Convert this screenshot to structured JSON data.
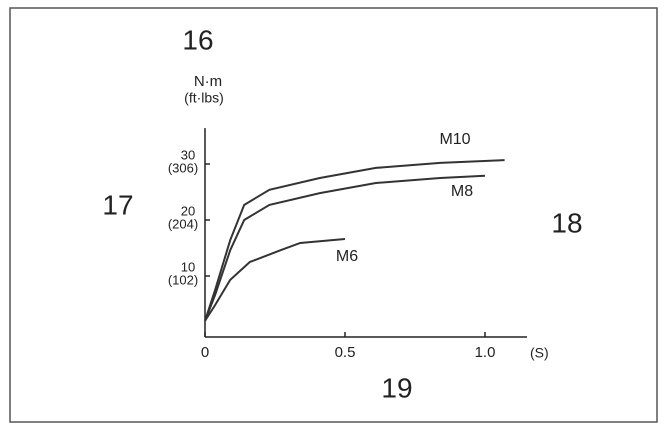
{
  "chart_data": {
    "type": "line",
    "y_label": "N·m",
    "y_label_alt": "(ft·lbs)",
    "x_label": "(S)",
    "xlim": [
      0,
      1.15
    ],
    "ylim": [
      0,
      36.4
    ],
    "xticks": [
      0,
      0.5,
      {
        "value": 1,
        "label": "1.0"
      }
    ],
    "yticks": [
      10,
      20,
      30
    ],
    "yticks_alt_labels": [
      "(102)",
      "(204)",
      "(306)"
    ],
    "series": [
      {
        "name": "M10",
        "color": "#333333",
        "x": [
          0,
          0.036,
          0.09,
          0.14,
          0.23,
          0.41,
          0.61,
          0.84,
          1.07
        ],
        "values": [
          2,
          7.5,
          16.4,
          22.7,
          25.4,
          27.5,
          29.3,
          30.2,
          30.7
        ]
      },
      {
        "name": "M8",
        "color": "#333333",
        "x": [
          0,
          0.036,
          0.09,
          0.14,
          0.23,
          0.41,
          0.61,
          0.84,
          1.0
        ],
        "values": [
          2,
          6.6,
          14.6,
          20,
          22.7,
          24.8,
          26.6,
          27.5,
          27.9
        ]
      },
      {
        "name": "M6",
        "color": "#333333",
        "x": [
          0,
          0.036,
          0.09,
          0.16,
          0.27,
          0.34,
          0.5
        ],
        "values": [
          2,
          4.8,
          9.3,
          12.5,
          14.6,
          15.9,
          16.6
        ]
      }
    ],
    "callouts": [
      "16",
      "17",
      "18",
      "19"
    ]
  }
}
